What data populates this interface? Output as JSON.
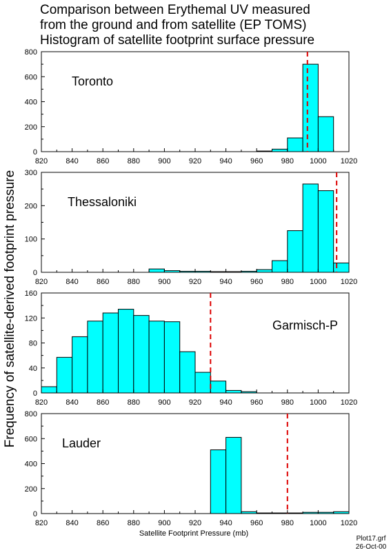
{
  "title_lines": [
    "Comparison between Erythemal UV measured",
    "from the ground and from satellite (EP TOMS)",
    "Histogram of satellite footprint surface pressure"
  ],
  "ylabel": "Frequency of satellite-derived footprint pressure",
  "xlabel": "Satellite Footprint Pressure (mb)",
  "footer": {
    "file": "Plot17.grf",
    "date": "26-Oct-00"
  },
  "colors": {
    "bar_fill": "#00ffff",
    "bar_stroke": "#000000",
    "reference_line": "#dd0000"
  },
  "chart_data": [
    {
      "type": "bar",
      "label": "Toronto",
      "label_position": "top-left",
      "xlim": [
        820,
        1020
      ],
      "ylim": [
        0,
        800
      ],
      "yticks": [
        0,
        200,
        400,
        600,
        800
      ],
      "xticks": [
        820,
        840,
        860,
        880,
        900,
        920,
        940,
        960,
        980,
        1000,
        1020
      ],
      "bin_width": 10,
      "bins": [
        960,
        970,
        980,
        990,
        1000
      ],
      "values": [
        5,
        20,
        110,
        700,
        280
      ],
      "reference_line": 993
    },
    {
      "type": "bar",
      "label": "Thessaloniki",
      "label_position": "top-left",
      "xlim": [
        820,
        1020
      ],
      "ylim": [
        0,
        300
      ],
      "yticks": [
        0,
        100,
        200,
        300
      ],
      "xticks": [
        820,
        840,
        860,
        880,
        900,
        920,
        940,
        960,
        980,
        1000,
        1020
      ],
      "bin_width": 10,
      "bins": [
        890,
        900,
        910,
        920,
        930,
        940,
        950,
        960,
        970,
        980,
        990,
        1000,
        1010
      ],
      "values": [
        10,
        5,
        3,
        3,
        2,
        2,
        3,
        8,
        35,
        125,
        265,
        245,
        28
      ],
      "reference_line": 1012
    },
    {
      "type": "bar",
      "label": "Garmisch-P",
      "label_position": "middle-right",
      "xlim": [
        820,
        1020
      ],
      "ylim": [
        0,
        160
      ],
      "yticks": [
        0,
        40,
        80,
        120,
        160
      ],
      "xticks": [
        820,
        840,
        860,
        880,
        900,
        920,
        940,
        960,
        980,
        1000,
        1020
      ],
      "bin_width": 10,
      "bins": [
        820,
        830,
        840,
        850,
        860,
        870,
        880,
        890,
        900,
        910,
        920,
        930,
        940,
        950
      ],
      "values": [
        10,
        57,
        90,
        115,
        128,
        134,
        124,
        115,
        114,
        66,
        33,
        19,
        4,
        2
      ],
      "reference_line": 930
    },
    {
      "type": "bar",
      "label": "Lauder",
      "label_position": "top-left",
      "xlim": [
        820,
        1020
      ],
      "ylim": [
        0,
        800
      ],
      "yticks": [
        0,
        200,
        400,
        600,
        800
      ],
      "xticks": [
        820,
        840,
        860,
        880,
        900,
        920,
        940,
        960,
        980,
        1000,
        1020
      ],
      "bin_width": 10,
      "bins": [
        930,
        940,
        950,
        960,
        970,
        980,
        990,
        1000,
        1010
      ],
      "values": [
        510,
        610,
        15,
        5,
        5,
        5,
        10,
        10,
        15
      ],
      "reference_line": 980
    }
  ]
}
